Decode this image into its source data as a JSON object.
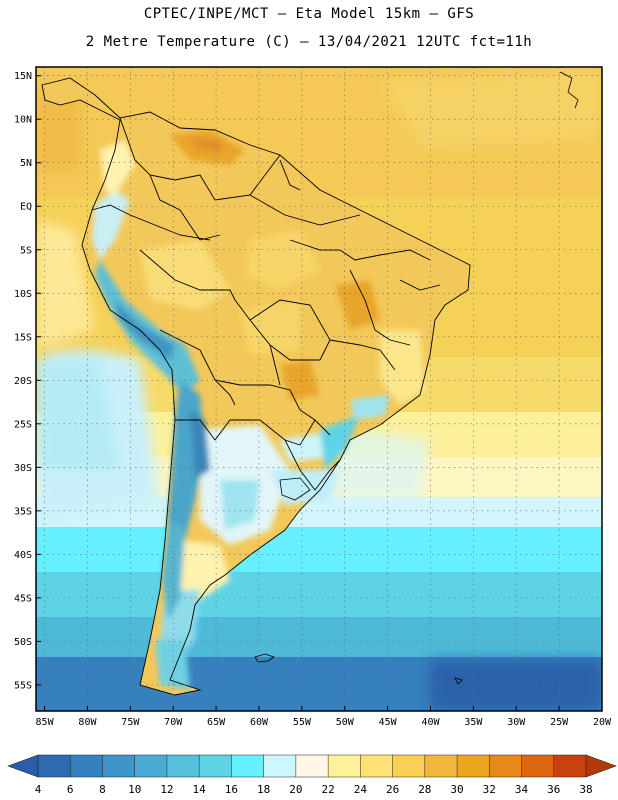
{
  "header": {
    "line1": "CPTEC/INPE/MCT –  Eta Model 15km – GFS",
    "line2": "2 Metre Temperature (C) – 13/04/2021 12UTC fct=11h"
  },
  "map": {
    "lat_labels": [
      "15N",
      "10N",
      "5N",
      "EQ",
      "5S",
      "10S",
      "15S",
      "20S",
      "25S",
      "30S",
      "35S",
      "40S",
      "45S",
      "50S",
      "55S"
    ],
    "lon_labels": [
      "85W",
      "80W",
      "75W",
      "70W",
      "65W",
      "60W",
      "55W",
      "50W",
      "45W",
      "40W",
      "35W",
      "30W",
      "25W",
      "20W"
    ],
    "extent": {
      "lon_min": -86,
      "lon_max": -20,
      "lat_min": -58,
      "lat_max": 16
    }
  },
  "colorbar": {
    "labels": [
      "4",
      "6",
      "8",
      "10",
      "12",
      "14",
      "16",
      "18",
      "20",
      "22",
      "24",
      "26",
      "28",
      "30",
      "32",
      "34",
      "36",
      "38"
    ],
    "colors": [
      "#2c6bb0",
      "#3580bf",
      "#3f95c9",
      "#49aad4",
      "#55c0dc",
      "#5fd3e6",
      "#66f0ff",
      "#cdf6ff",
      "#fff8e6",
      "#fff29a",
      "#ffe177",
      "#f9cf56",
      "#f1b73c",
      "#eca61e",
      "#e6891a",
      "#dc6612",
      "#c8420c"
    ],
    "below_color": "#2a5ea8",
    "above_color": "#b33a08"
  }
}
